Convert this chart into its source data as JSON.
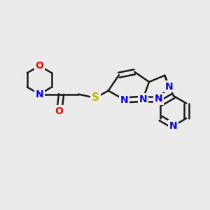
{
  "bg_color": "#ebebeb",
  "bond_color": "#1a1a1a",
  "bond_width": 1.8,
  "dbo": 0.12,
  "atom_colors": {
    "N": "#0000ff",
    "O": "#ff0000",
    "S": "#b8b800",
    "C": "#1a1a1a"
  },
  "figsize": [
    3.0,
    3.0
  ],
  "dpi": 100
}
